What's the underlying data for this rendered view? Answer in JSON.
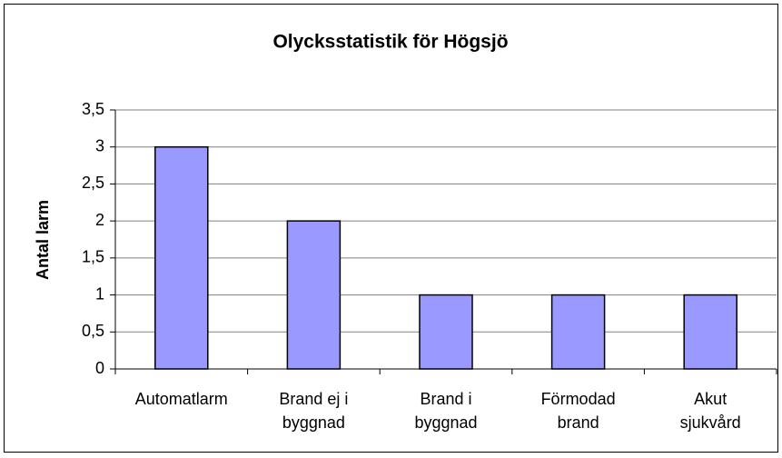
{
  "chart_data": {
    "type": "bar",
    "title": "Olycksstatistik för Högsjö",
    "y_label": "Antal larm",
    "categories": [
      "Automatlarm",
      "Brand ej i\nbyggnad",
      "Brand i\nbyggnad",
      "Förmodad\nbrand",
      "Akut\nsjukvård"
    ],
    "values": [
      3,
      2,
      1,
      1,
      1
    ],
    "color": "#9999ff",
    "ylim": [
      0,
      3.5
    ],
    "yticks": [
      0,
      {
        "value": 0.5,
        "label": "0,5"
      },
      1,
      {
        "value": 1.5,
        "label": "1,5"
      },
      2,
      {
        "value": 2.5,
        "label": "2,5"
      },
      3,
      {
        "value": 3.5,
        "label": "3,5"
      }
    ],
    "grid": true
  }
}
